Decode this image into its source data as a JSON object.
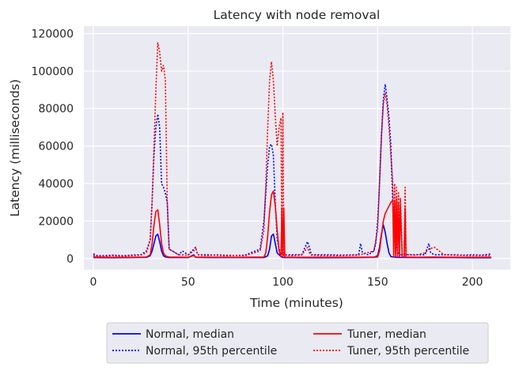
{
  "chart_data": {
    "type": "line",
    "title": "Latency with node removal",
    "xlabel": "Time (minutes)",
    "ylabel": "Latency (milliseconds)",
    "xlim": [
      -5,
      220
    ],
    "ylim": [
      -6000,
      124000
    ],
    "xticks": [
      0,
      50,
      100,
      150,
      200
    ],
    "yticks": [
      0,
      20000,
      40000,
      60000,
      80000,
      100000,
      120000
    ],
    "grid": true,
    "legend_position": "bottom (below plot), 2 columns",
    "colors": {
      "normal": "#0000ff",
      "tuner": "#ff0000",
      "background": "#eaeaf2",
      "grid": "#ffffff"
    },
    "series": [
      {
        "name": "Normal, median",
        "color": "#0000ff",
        "style": "solid",
        "x": [
          0,
          10,
          20,
          28,
          30,
          31,
          32,
          33,
          34,
          35,
          36,
          37,
          38,
          40,
          50,
          53,
          54,
          60,
          80,
          90,
          92,
          93,
          94,
          95,
          96,
          97,
          99,
          100,
          101,
          105,
          120,
          140,
          148,
          150,
          151,
          152,
          153,
          154,
          155,
          156,
          157,
          160,
          170,
          190,
          200,
          210
        ],
        "y": [
          500,
          400,
          500,
          600,
          1500,
          4000,
          8000,
          12000,
          13000,
          9000,
          4000,
          1500,
          800,
          500,
          500,
          2000,
          600,
          500,
          500,
          500,
          1500,
          5000,
          12000,
          13000,
          8000,
          3000,
          1000,
          600,
          500,
          500,
          400,
          500,
          600,
          1500,
          6000,
          13000,
          18000,
          14000,
          8000,
          3000,
          1000,
          600,
          500,
          500,
          400,
          400
        ]
      },
      {
        "name": "Normal, 95th percentile",
        "color": "#0000ff",
        "style": "dotted",
        "x": [
          0,
          2,
          5,
          10,
          15,
          20,
          25,
          28,
          30,
          31,
          32,
          33,
          34,
          35,
          36,
          37,
          38,
          39,
          40,
          45,
          47,
          50,
          53,
          54,
          55,
          60,
          70,
          80,
          88,
          90,
          91,
          92,
          93,
          94,
          95,
          96,
          97,
          98,
          99,
          100,
          101,
          105,
          110,
          113,
          114,
          115,
          120,
          125,
          130,
          140,
          141,
          142,
          145,
          148,
          149,
          150,
          151,
          152,
          153,
          154,
          155,
          156,
          157,
          158,
          159,
          160,
          161,
          162,
          165,
          170,
          175,
          177,
          178,
          180,
          185,
          190,
          195,
          200,
          205,
          210
        ],
        "y": [
          2500,
          1500,
          1500,
          1800,
          1500,
          1800,
          2000,
          4000,
          10000,
          30000,
          55000,
          70000,
          77000,
          70000,
          40000,
          38000,
          35000,
          30000,
          5000,
          2000,
          4000,
          2000,
          5000,
          6000,
          2000,
          2000,
          1500,
          1800,
          5000,
          20000,
          35000,
          50000,
          60000,
          61000,
          55000,
          30000,
          10000,
          5000,
          3000,
          2000,
          1800,
          2000,
          2000,
          9000,
          6000,
          2000,
          2000,
          2000,
          1800,
          2000,
          8000,
          3000,
          2000,
          4000,
          8000,
          20000,
          40000,
          65000,
          85000,
          93000,
          85000,
          75000,
          60000,
          30000,
          15000,
          5000,
          3000,
          2000,
          2000,
          2000,
          2000,
          8000,
          3000,
          2000,
          2000,
          2000,
          1800,
          2000,
          1800,
          2500
        ]
      },
      {
        "name": "Tuner, median",
        "color": "#ff0000",
        "style": "solid",
        "x": [
          0,
          10,
          20,
          28,
          30,
          31,
          32,
          33,
          34,
          35,
          36,
          37,
          38,
          39,
          40,
          50,
          53,
          54,
          60,
          80,
          90,
          91,
          92,
          93,
          94,
          95,
          96,
          97,
          98,
          99,
          99.5,
          100,
          100.5,
          101,
          105,
          120,
          140,
          150,
          151,
          152,
          153,
          154,
          155,
          156,
          157,
          158,
          158.5,
          159,
          159.5,
          160,
          160.5,
          161,
          161.5,
          162,
          163,
          164,
          164.5,
          165,
          170,
          180,
          190,
          200,
          210
        ],
        "y": [
          800,
          600,
          700,
          800,
          2000,
          8000,
          18000,
          25000,
          26000,
          18000,
          8000,
          3000,
          1500,
          1000,
          800,
          700,
          1500,
          800,
          700,
          700,
          800,
          3000,
          12000,
          25000,
          34000,
          36000,
          28000,
          15000,
          4000,
          1000,
          27000,
          1000,
          27000,
          800,
          700,
          700,
          700,
          800,
          4000,
          12000,
          20000,
          24000,
          26000,
          28000,
          30000,
          31000,
          800,
          31000,
          1000,
          32000,
          800,
          30000,
          1000,
          28000,
          800,
          800,
          27000,
          800,
          700,
          800,
          700,
          700,
          700
        ]
      },
      {
        "name": "Tuner, 95th percentile",
        "color": "#ff0000",
        "style": "dotted",
        "x": [
          0,
          5,
          10,
          15,
          20,
          25,
          28,
          30,
          31,
          32,
          33,
          34,
          35,
          36,
          37,
          38,
          39,
          40,
          45,
          50,
          53,
          54,
          55,
          60,
          65,
          70,
          80,
          88,
          90,
          91,
          92,
          93,
          94,
          95,
          96,
          97,
          98,
          99,
          99.5,
          100,
          100.5,
          101,
          105,
          110,
          113,
          114,
          115,
          120,
          130,
          140,
          148,
          150,
          151,
          152,
          153,
          154,
          155,
          156,
          157,
          158,
          158.5,
          159,
          159.5,
          160,
          160.5,
          161,
          161.5,
          162,
          163,
          164,
          164.5,
          165,
          170,
          175,
          177,
          180,
          185,
          190,
          200,
          210
        ],
        "y": [
          1500,
          1200,
          1500,
          1200,
          1500,
          1800,
          3000,
          10000,
          30000,
          60000,
          90000,
          115000,
          110000,
          100000,
          103000,
          95000,
          30000,
          5000,
          2000,
          1800,
          4000,
          6000,
          2000,
          1500,
          2000,
          1800,
          1500,
          4000,
          15000,
          40000,
          70000,
          95000,
          105000,
          95000,
          76000,
          60000,
          70000,
          75000,
          2000,
          78000,
          3000,
          2000,
          1500,
          2000,
          6000,
          3000,
          1800,
          1500,
          1500,
          1800,
          4000,
          15000,
          40000,
          65000,
          82000,
          88000,
          82000,
          70000,
          55000,
          40000,
          2000,
          40000,
          3000,
          38000,
          2000,
          35000,
          2000,
          32000,
          2000,
          2000,
          38000,
          2000,
          1800,
          3000,
          5000,
          6000,
          2000,
          1800,
          1500,
          1500
        ]
      }
    ]
  }
}
